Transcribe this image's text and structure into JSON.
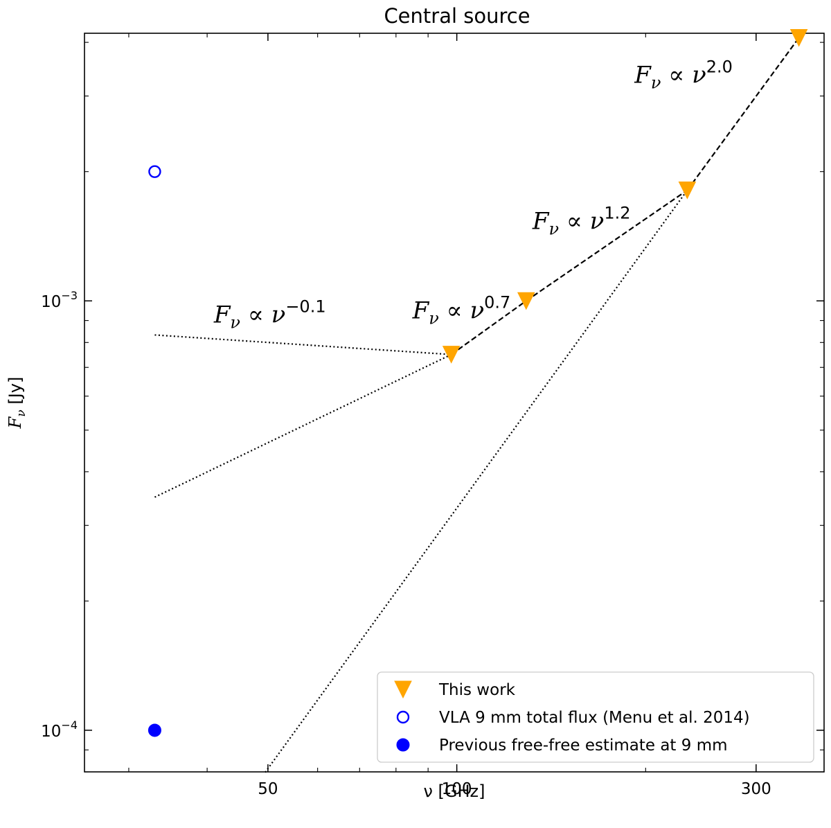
{
  "chart_data": {
    "type": "scatter",
    "title": "Central source",
    "xlabel": "ν [GHz]",
    "ylabel": "Fν [Jy]",
    "xscale": "log",
    "yscale": "log",
    "xlim": [
      25.5,
      385
    ],
    "ylim": [
      8e-05,
      0.0042
    ],
    "xticks": [
      {
        "value": 50,
        "label": "50"
      },
      {
        "value": 100,
        "label": "100"
      },
      {
        "value": 300,
        "label": "300"
      }
    ],
    "yticks": [
      {
        "value": 0.0001,
        "base": "10",
        "exp": "−4"
      },
      {
        "value": 0.001,
        "base": "10",
        "exp": "−3"
      }
    ],
    "series": [
      {
        "name": "This work",
        "marker": "triangle-down",
        "color": "#ffa500",
        "x": [
          98,
          129,
          233,
          351
        ],
        "y": [
          0.00075,
          0.001,
          0.00181,
          0.0041
        ]
      },
      {
        "name": "VLA 9 mm total flux (Menu et al. 2014)",
        "marker": "open-circle",
        "color": "#0000ff",
        "x": [
          33
        ],
        "y": [
          0.002
        ]
      },
      {
        "name": "Previous free-free estimate at 9 mm",
        "marker": "filled-circle",
        "color": "#0000ff",
        "x": [
          33
        ],
        "y": [
          0.0001
        ]
      }
    ],
    "fit_segments": [
      {
        "style": "dashed",
        "x": [
          98,
          129
        ],
        "y": [
          0.00075,
          0.001
        ]
      },
      {
        "style": "dashed",
        "x": [
          129,
          233
        ],
        "y": [
          0.001,
          0.00181
        ]
      },
      {
        "style": "dashed",
        "x": [
          233,
          351
        ],
        "y": [
          0.00181,
          0.0041
        ]
      },
      {
        "style": "dotted",
        "x": [
          33,
          98
        ],
        "y": [
          0.000833,
          0.00075
        ]
      },
      {
        "style": "dotted",
        "x": [
          33,
          98
        ],
        "y": [
          0.000349,
          0.00075
        ]
      },
      {
        "style": "dotted",
        "x": [
          49.5,
          233
        ],
        "y": [
          7.98e-05,
          0.00181
        ]
      }
    ],
    "annotations": [
      {
        "base": "F",
        "sub": "ν",
        "rel": " ∝ ν",
        "exp": "−0.1",
        "x": 41,
        "y": 0.00089
      },
      {
        "base": "F",
        "sub": "ν",
        "rel": " ∝ ν",
        "exp": "0.7",
        "x": 85,
        "y": 0.00091
      },
      {
        "base": "F",
        "sub": "ν",
        "rel": " ∝ ν",
        "exp": "1.2",
        "x": 132,
        "y": 0.00147
      },
      {
        "base": "F",
        "sub": "ν",
        "rel": " ∝ ν",
        "exp": "2.0",
        "x": 192,
        "y": 0.00322
      }
    ],
    "legend_position": "lower-right",
    "grid": false
  }
}
